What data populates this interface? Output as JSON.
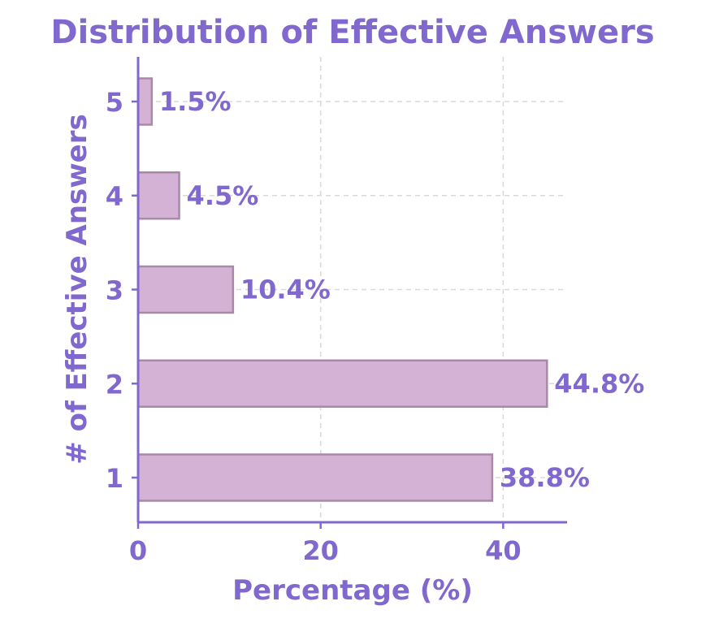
{
  "chart_data": {
    "type": "bar",
    "orientation": "horizontal",
    "title": "Distribution of Effective Answers",
    "xlabel": "Percentage (%)",
    "ylabel": "# of Effective Answers",
    "categories": [
      "1",
      "2",
      "3",
      "4",
      "5"
    ],
    "values": [
      38.8,
      44.8,
      10.4,
      4.5,
      1.5
    ],
    "data_labels": [
      "38.8%",
      "44.8%",
      "10.4%",
      "4.5%",
      "1.5%"
    ],
    "xlim": [
      0,
      47
    ],
    "xticks": [
      0,
      20,
      40
    ],
    "xtick_labels": [
      "0",
      "20",
      "40"
    ],
    "grid": true,
    "legend": "none",
    "colors": {
      "text": "#8068cf",
      "bar_fill": "#d3b2d6",
      "bar_stroke": "#a88aa8",
      "axis": "#8068cf",
      "grid": "#d9d9d9"
    }
  }
}
